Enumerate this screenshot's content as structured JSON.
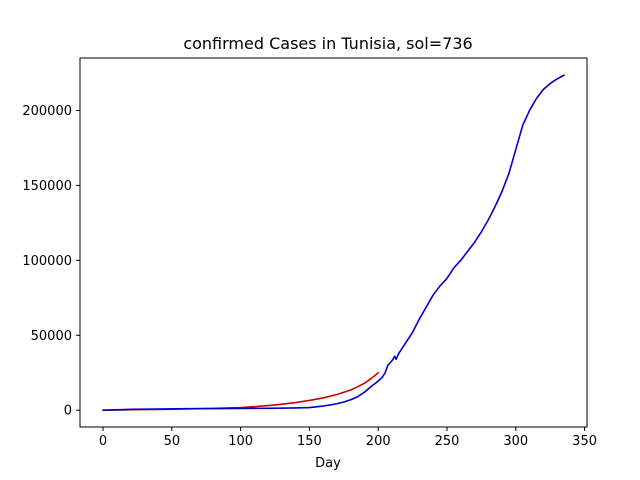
{
  "chart_data": {
    "type": "line",
    "title": "confirmed Cases in Tunisia, sol=736",
    "xlabel": "Day",
    "ylabel": "",
    "xlim": [
      -16.75,
      351.75
    ],
    "ylim": [
      -11200,
      235000
    ],
    "xticks": [
      0,
      50,
      100,
      150,
      200,
      250,
      300,
      350
    ],
    "yticks": [
      0,
      50000,
      100000,
      150000,
      200000
    ],
    "grid": false,
    "legend": "none",
    "series": [
      {
        "color": "#cc0000",
        "x": [
          0,
          20,
          40,
          60,
          80,
          100,
          110,
          120,
          130,
          140,
          150,
          160,
          170,
          180,
          185,
          190,
          195,
          200
        ],
        "y": [
          0,
          300,
          550,
          800,
          1200,
          1800,
          2400,
          3100,
          4000,
          5100,
          6500,
          8200,
          10500,
          13500,
          15600,
          18000,
          21200,
          25000
        ]
      },
      {
        "color": "#0000cc",
        "x": [
          0,
          20,
          40,
          60,
          80,
          100,
          120,
          140,
          150,
          160,
          165,
          170,
          175,
          180,
          185,
          190,
          195,
          198,
          200,
          203,
          205,
          207,
          210,
          212,
          213,
          215,
          220,
          225,
          230,
          235,
          240,
          245,
          250,
          255,
          260,
          265,
          270,
          275,
          280,
          285,
          290,
          295,
          300,
          305,
          310,
          315,
          320,
          325,
          330,
          335
        ],
        "y": [
          0,
          600,
          800,
          1000,
          1100,
          1200,
          1300,
          1500,
          1800,
          2800,
          3500,
          4300,
          5500,
          7000,
          9000,
          12000,
          16000,
          18000,
          19500,
          22000,
          25000,
          30000,
          33000,
          36000,
          34000,
          38000,
          45000,
          52000,
          61000,
          69000,
          77000,
          83000,
          88000,
          95000,
          100000,
          106000,
          112000,
          119000,
          127000,
          136000,
          146000,
          158000,
          174000,
          190000,
          200000,
          208000,
          214000,
          218000,
          221000,
          223500
        ]
      }
    ]
  }
}
